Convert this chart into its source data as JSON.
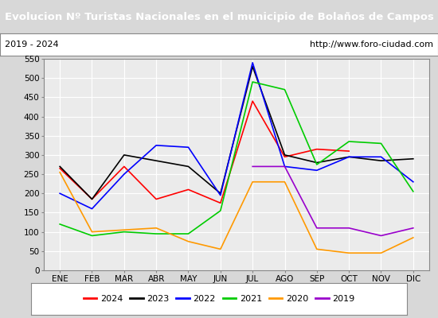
{
  "title": "Evolucion Nº Turistas Nacionales en el municipio de Bolaños de Campos",
  "subtitle_left": "2019 - 2024",
  "subtitle_right": "http://www.foro-ciudad.com",
  "months": [
    "ENE",
    "FEB",
    "MAR",
    "ABR",
    "MAY",
    "JUN",
    "JUL",
    "AGO",
    "SEP",
    "OCT",
    "NOV",
    "DIC"
  ],
  "ylim": [
    0,
    550
  ],
  "yticks": [
    0,
    50,
    100,
    150,
    200,
    250,
    300,
    350,
    400,
    450,
    500,
    550
  ],
  "series": [
    {
      "year": "2024",
      "color": "#ff0000",
      "values": [
        265,
        185,
        270,
        185,
        210,
        175,
        440,
        295,
        315,
        310,
        null,
        null
      ]
    },
    {
      "year": "2023",
      "color": "#000000",
      "values": [
        270,
        185,
        300,
        285,
        270,
        200,
        530,
        300,
        280,
        295,
        285,
        290
      ]
    },
    {
      "year": "2022",
      "color": "#0000ff",
      "values": [
        200,
        160,
        250,
        325,
        320,
        195,
        540,
        270,
        260,
        295,
        295,
        230
      ]
    },
    {
      "year": "2021",
      "color": "#00cc00",
      "values": [
        120,
        90,
        100,
        95,
        95,
        155,
        490,
        470,
        275,
        335,
        330,
        205
      ]
    },
    {
      "year": "2020",
      "color": "#ff9900",
      "values": [
        255,
        100,
        105,
        110,
        75,
        55,
        230,
        230,
        55,
        45,
        45,
        85
      ]
    },
    {
      "year": "2019",
      "color": "#9900cc",
      "values": [
        null,
        null,
        null,
        null,
        null,
        null,
        270,
        270,
        110,
        110,
        90,
        110
      ]
    }
  ],
  "title_bg_color": "#5b7fce",
  "title_text_color": "#ffffff",
  "subtitle_bg_color": "#ffffff",
  "plot_bg_color": "#ebebeb",
  "grid_color": "#ffffff",
  "outer_bg_color": "#d8d8d8",
  "legend_labels": [
    "2024",
    "2023",
    "2022",
    "2021",
    "2020",
    "2019"
  ],
  "legend_colors": [
    "#ff0000",
    "#000000",
    "#0000ff",
    "#00cc00",
    "#ff9900",
    "#9900cc"
  ]
}
